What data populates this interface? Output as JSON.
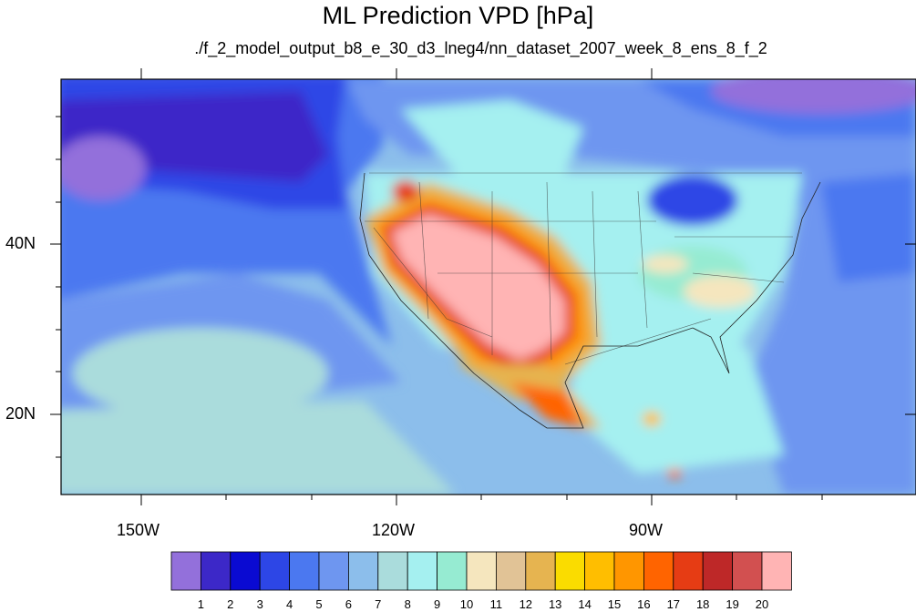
{
  "title": "ML Prediction VPD [hPa]",
  "subtitle": "./f_2_model_output_b8_e_30_d3_lneg4/nn_dataset_2007_week_8_ens_8_f_2",
  "axes": {
    "lon_labels": [
      "150W",
      "120W",
      "90W"
    ],
    "lat_labels": [
      "40N",
      "20N"
    ]
  },
  "colorbar": {
    "labels": [
      "1",
      "2",
      "3",
      "4",
      "5",
      "6",
      "7",
      "8",
      "9",
      "10",
      "11",
      "12",
      "13",
      "14",
      "15",
      "16",
      "17",
      "18",
      "19",
      "20"
    ],
    "colors": [
      "#9370db",
      "#3c28c8",
      "#0a0ad2",
      "#2d46e6",
      "#4b78f0",
      "#6e96f0",
      "#8cbeeb",
      "#aadcdc",
      "#a5f0f0",
      "#96ebd2",
      "#f5e6be",
      "#e1c396",
      "#e6b450",
      "#fadc00",
      "#ffbe00",
      "#ff9600",
      "#ff6400",
      "#e63c14",
      "#be2828",
      "#d25050",
      "#ffb4b4"
    ]
  }
}
